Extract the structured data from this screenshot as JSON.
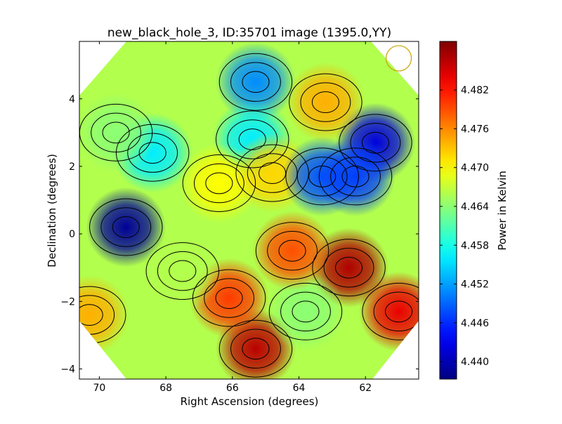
{
  "chart_data": {
    "type": "heatmap",
    "title": "new_black_hole_3, ID:35701 image (1395.0,YY)",
    "xlabel": "Right Ascension (degrees)",
    "ylabel": "Declination (degrees)",
    "xlim": [
      70.6,
      60.4
    ],
    "ylim": [
      -4.3,
      5.7
    ],
    "x_ticks": [
      70,
      68,
      66,
      64,
      62
    ],
    "x_tick_labels": [
      "70",
      "68",
      "66",
      "64",
      "62"
    ],
    "y_ticks": [
      -4,
      -2,
      0,
      2,
      4
    ],
    "y_tick_labels": [
      "−4",
      "−2",
      "0",
      "2",
      "4"
    ],
    "colorbar": {
      "label": "Power in Kelvin",
      "range": [
        4.4373,
        4.4895
      ],
      "ticks": [
        4.44,
        4.446,
        4.452,
        4.458,
        4.464,
        4.47,
        4.476,
        4.482
      ],
      "tick_labels": [
        "4.440",
        "4.446",
        "4.452",
        "4.458",
        "4.464",
        "4.470",
        "4.476",
        "4.482"
      ],
      "colormap": "jet"
    },
    "beam": {
      "shape": "circle",
      "color": "#c8a400",
      "ra": 61.0,
      "dec": 5.2,
      "radius_deg": 0.38
    },
    "features": [
      {
        "ra": 69.2,
        "dec": 0.2,
        "value": 4.4385
      },
      {
        "ra": 61.7,
        "dec": 2.7,
        "value": 4.442
      },
      {
        "ra": 65.3,
        "dec": 4.5,
        "value": 4.451
      },
      {
        "ra": 68.4,
        "dec": 2.4,
        "value": 4.456
      },
      {
        "ra": 65.4,
        "dec": 2.8,
        "value": 4.456
      },
      {
        "ra": 62.5,
        "dec": -1.0,
        "value": 4.487
      },
      {
        "ra": 65.3,
        "dec": -3.4,
        "value": 4.4865
      },
      {
        "ra": 66.1,
        "dec": -1.9,
        "value": 4.48
      },
      {
        "ra": 61.0,
        "dec": -2.3,
        "value": 4.484
      },
      {
        "ra": 63.8,
        "dec": -2.3,
        "value": 4.464
      },
      {
        "ra": 64.2,
        "dec": -0.5,
        "value": 4.479
      },
      {
        "ra": 70.3,
        "dec": -2.4,
        "value": 4.474
      },
      {
        "ra": 67.5,
        "dec": -1.1,
        "value": 4.466
      },
      {
        "ra": 63.2,
        "dec": 3.9,
        "value": 4.474
      },
      {
        "ra": 66.4,
        "dec": 1.5,
        "value": 4.47
      },
      {
        "ra": 64.8,
        "dec": 1.8,
        "value": 4.472
      },
      {
        "ra": 63.3,
        "dec": 1.7,
        "value": 4.448
      },
      {
        "ra": 62.3,
        "dec": 1.7,
        "value": 4.447
      },
      {
        "ra": 69.5,
        "dec": 3.0,
        "value": 4.464
      }
    ],
    "background_value": 4.466,
    "grid": false,
    "contours": true
  }
}
